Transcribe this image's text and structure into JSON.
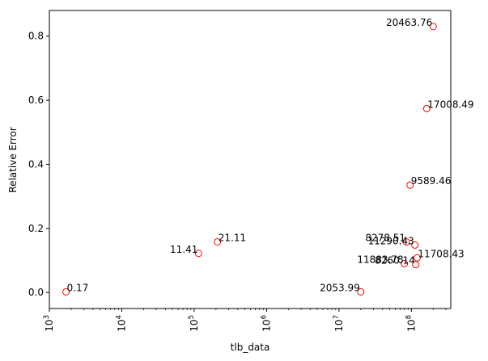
{
  "chart_data": {
    "type": "scatter",
    "title": "",
    "xlabel": "tlb_data",
    "ylabel": "Relative Error",
    "xscale": "log",
    "xlim": [
      1000,
      350000000
    ],
    "ylim": [
      -0.05,
      0.88
    ],
    "x_ticks": [
      {
        "value": 1000,
        "base": "10",
        "exp": "3"
      },
      {
        "value": 10000,
        "base": "10",
        "exp": "4"
      },
      {
        "value": 100000,
        "base": "10",
        "exp": "5"
      },
      {
        "value": 1000000,
        "base": "10",
        "exp": "6"
      },
      {
        "value": 10000000,
        "base": "10",
        "exp": "7"
      },
      {
        "value": 100000000,
        "base": "10",
        "exp": "8"
      }
    ],
    "y_ticks": [
      {
        "value": 0.0,
        "label": "0.0"
      },
      {
        "value": 0.2,
        "label": "0.2"
      },
      {
        "value": 0.4,
        "label": "0.4"
      },
      {
        "value": 0.6,
        "label": "0.6"
      },
      {
        "value": 0.8,
        "label": "0.8"
      }
    ],
    "grid": false,
    "marker": {
      "edge_color": "#ff0000",
      "fill": "none"
    },
    "points": [
      {
        "x": 1700,
        "y": 0.002,
        "label": "0.17",
        "anchor": "start"
      },
      {
        "x": 115000,
        "y": 0.122,
        "label": "11.41",
        "anchor": "end"
      },
      {
        "x": 210000,
        "y": 0.158,
        "label": "21.11",
        "anchor": "start"
      },
      {
        "x": 20000000,
        "y": 0.002,
        "label": "2053.99",
        "anchor": "end"
      },
      {
        "x": 80000000,
        "y": 0.09,
        "label": "11883.78",
        "anchor": "end"
      },
      {
        "x": 85000000,
        "y": 0.158,
        "label": "8278.51",
        "anchor": "end"
      },
      {
        "x": 96000000,
        "y": 0.335,
        "label": "9589.46",
        "anchor": "start"
      },
      {
        "x": 112000000,
        "y": 0.148,
        "label": "11290.43",
        "anchor": "end"
      },
      {
        "x": 115000000,
        "y": 0.087,
        "label": "8260.14",
        "anchor": "end"
      },
      {
        "x": 120000000,
        "y": 0.108,
        "label": "11708.43",
        "anchor": "start"
      },
      {
        "x": 163000000,
        "y": 0.574,
        "label": "17008.49",
        "anchor": "start"
      },
      {
        "x": 200000000,
        "y": 0.83,
        "label": "20463.76",
        "anchor": "end"
      }
    ]
  }
}
